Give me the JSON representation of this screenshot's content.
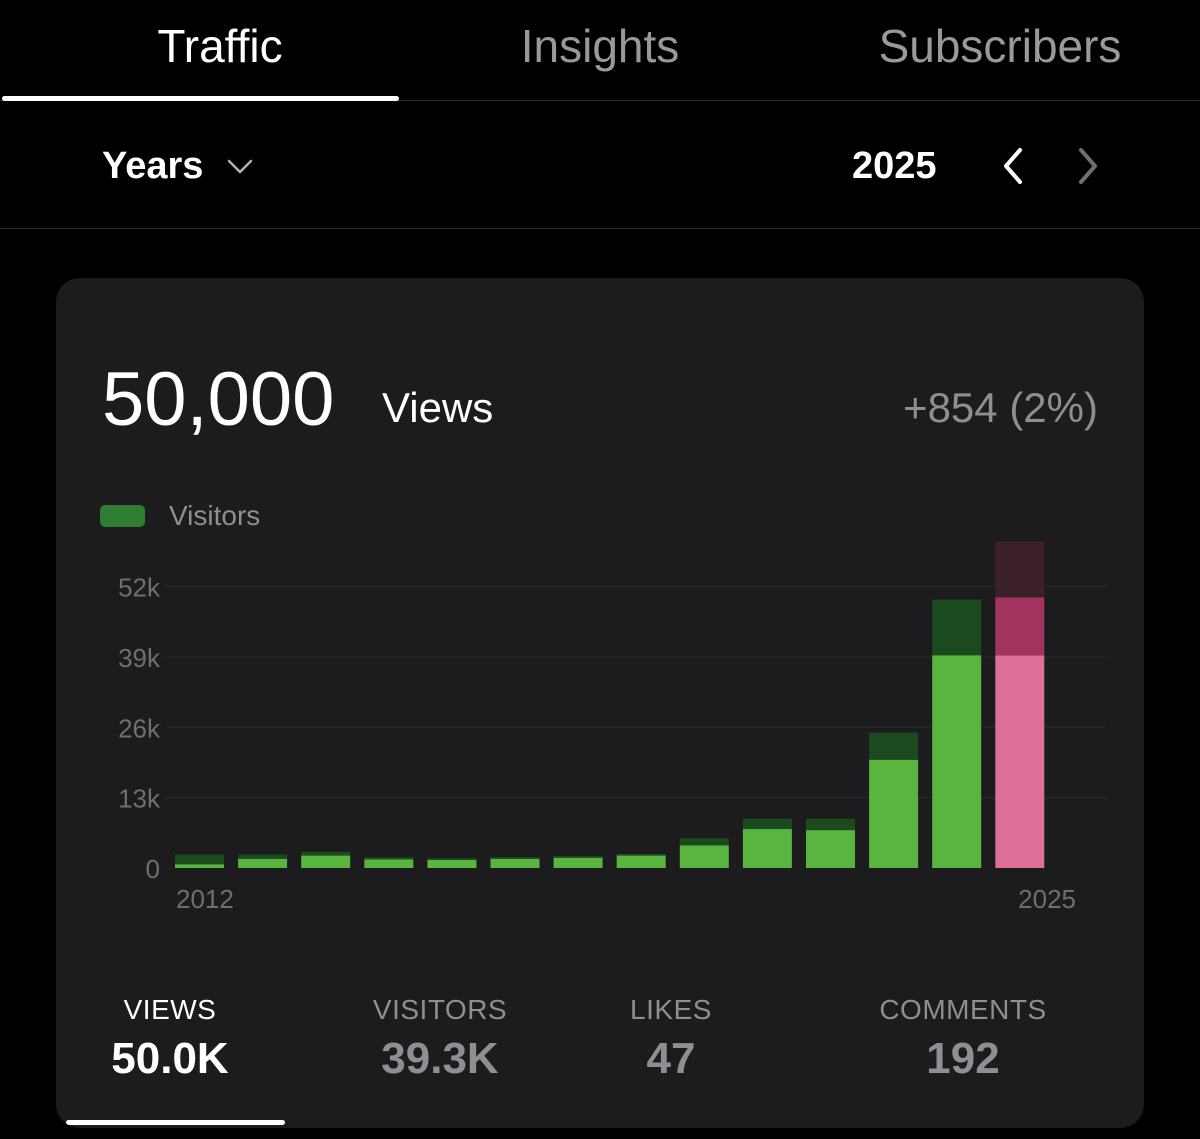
{
  "tabs": [
    {
      "label": "Traffic",
      "active": true
    },
    {
      "label": "Insights",
      "active": false
    },
    {
      "label": "Subscribers",
      "active": false
    }
  ],
  "period": {
    "selected": "Years",
    "year": "2025",
    "icons": {
      "dropdown": "chevron-down-icon",
      "prev": "chevron-left-icon",
      "next": "chevron-right-icon"
    }
  },
  "summary": {
    "value": "50,000",
    "unit": "Views",
    "change": "+854 (2%)"
  },
  "legend": {
    "label": "Visitors",
    "color": "#2e7d32"
  },
  "colors": {
    "visitors": "#5ab540",
    "views_extra": "#1c4a1f",
    "current_visitors": "#dd6f98",
    "current_views": "#a3335f",
    "current_projection": "#3b1f2a"
  },
  "chart_data": {
    "type": "bar",
    "stacked": true,
    "categories": [
      "2012",
      "2013",
      "2014",
      "2015",
      "2016",
      "2017",
      "2018",
      "2019",
      "2020",
      "2021",
      "2022",
      "2023",
      "2024",
      "2025"
    ],
    "x_tick_labels": [
      "2012",
      "2025"
    ],
    "y_ticks": [
      "0",
      "13k",
      "26k",
      "39k",
      "52k"
    ],
    "ylim": [
      0,
      60000
    ],
    "grid": true,
    "legend_position": "top-left",
    "series": [
      {
        "name": "Visitors",
        "values": [
          700,
          1700,
          2300,
          1600,
          1500,
          1700,
          1900,
          2300,
          4200,
          7200,
          7000,
          20000,
          39300,
          39300
        ]
      },
      {
        "values": [
          1800,
          800,
          700,
          400,
          300,
          300,
          300,
          300,
          1300,
          1900,
          2100,
          5000,
          10300,
          10700
        ]
      },
      {
        "values": [
          0,
          0,
          0,
          0,
          0,
          0,
          0,
          0,
          0,
          0,
          0,
          0,
          0,
          10300
        ]
      }
    ]
  },
  "stats": [
    {
      "label": "VIEWS",
      "value": "50.0K",
      "active": true
    },
    {
      "label": "VISITORS",
      "value": "39.3K",
      "active": false
    },
    {
      "label": "LIKES",
      "value": "47",
      "active": false
    },
    {
      "label": "COMMENTS",
      "value": "192",
      "active": false
    }
  ]
}
